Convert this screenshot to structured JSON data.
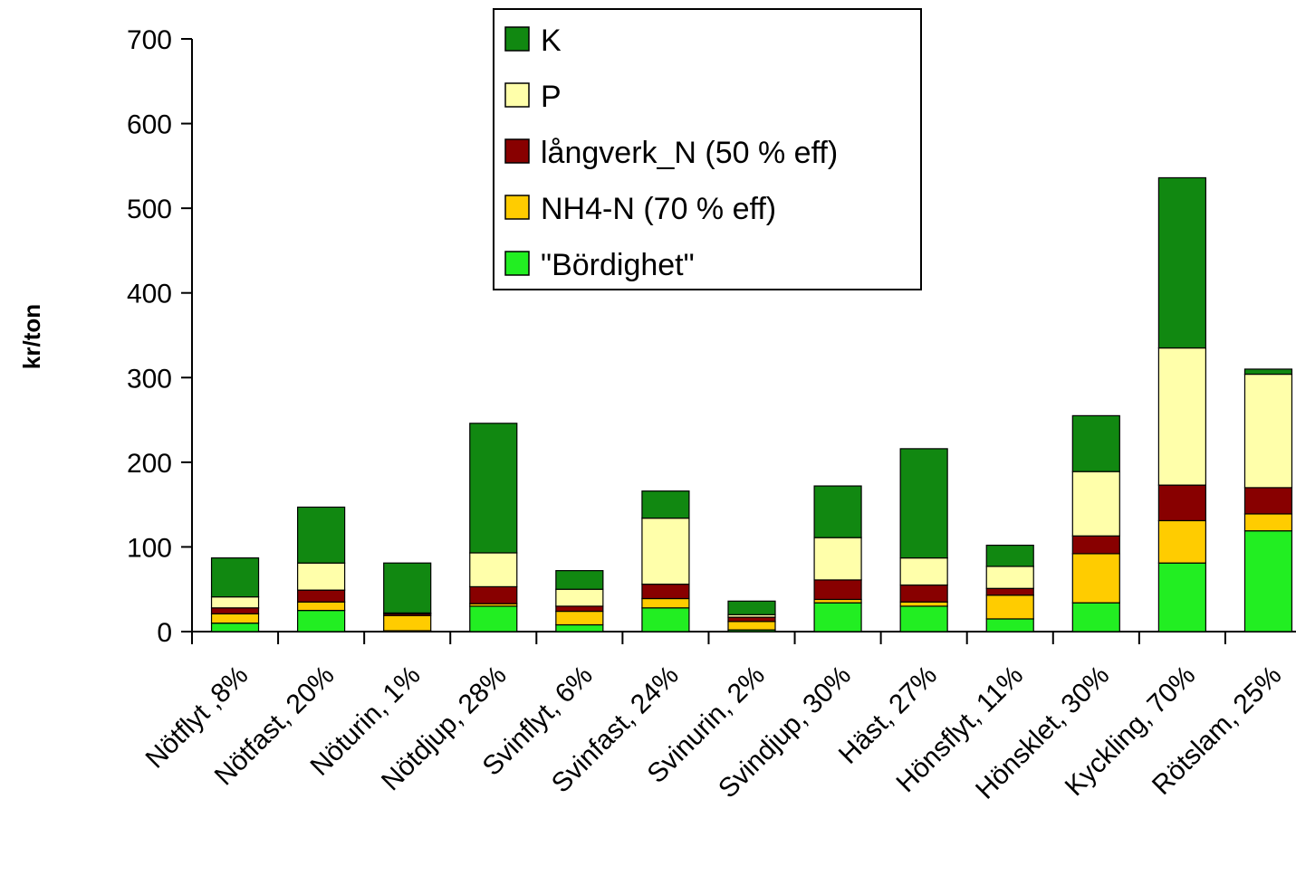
{
  "chart_data": {
    "type": "bar",
    "stacked": true,
    "title": "",
    "xlabel": "",
    "ylabel": "kr/ton",
    "ylim": [
      0,
      700
    ],
    "yticks": [
      0,
      100,
      200,
      300,
      400,
      500,
      600,
      700
    ],
    "grid": false,
    "legend_position": "top-center",
    "categories": [
      "Nötflyt ,8%",
      "Nötfast, 20%",
      "Nöturin, 1%",
      "Nötdjup, 28%",
      "Svinflyt, 6%",
      "Svinfast, 24%",
      "Svinurin, 2%",
      "Svindjup, 30%",
      "Häst, 27%",
      "Hönsflyt, 11%",
      "Hönsklet, 30%",
      "Kyckling, 70%",
      "Rötslam, 25%"
    ],
    "series": [
      {
        "name": "\"Bördighet\"",
        "color": "#22ee22",
        "values": [
          10,
          25,
          1,
          30,
          8,
          28,
          2,
          34,
          30,
          15,
          34,
          81,
          119
        ]
      },
      {
        "name": "NH4-N (70 % eff)",
        "color": "#ffcc00",
        "values": [
          11,
          10,
          18,
          3,
          16,
          11,
          10,
          4,
          5,
          28,
          58,
          50,
          20
        ]
      },
      {
        "name": "långverk_N (50 % eff)",
        "color": "#880000",
        "values": [
          7,
          14,
          2,
          20,
          6,
          17,
          5,
          23,
          20,
          8,
          21,
          42,
          31
        ]
      },
      {
        "name": "P",
        "color": "#ffffaa",
        "values": [
          13,
          32,
          1,
          40,
          20,
          78,
          3,
          50,
          32,
          26,
          76,
          162,
          134
        ]
      },
      {
        "name": "K",
        "color": "#118811",
        "values": [
          46,
          66,
          59,
          153,
          22,
          32,
          16,
          61,
          129,
          25,
          66,
          201,
          6
        ]
      }
    ]
  },
  "legend_order": [
    "K",
    "P",
    "långverk_N (50 % eff)",
    "NH4-N (70 % eff)",
    "\"Bördighet\""
  ]
}
